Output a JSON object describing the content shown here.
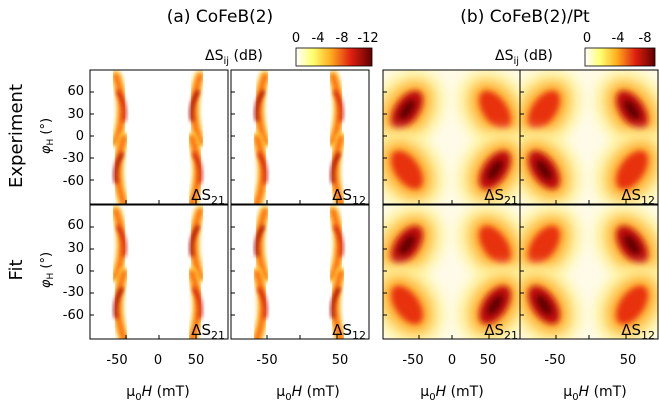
{
  "figure": {
    "panel_titles": [
      "(a) CoFeB(2)",
      "(b) CoFeB(2)/Pt"
    ],
    "row_labels": [
      "Experiment",
      "Fit"
    ],
    "ylabel": "φH (°)",
    "ylabel_main": "φ",
    "ylabel_sub": "H",
    "ylabel_unit": " (°)",
    "xlabel_prefix": "μ",
    "xlabel_sub": "0",
    "xlabel_var": "H",
    "xlabel_unit": " (mT)",
    "colorbar_label_main": "ΔS",
    "colorbar_label_sub": "ij",
    "colorbar_label_unit": " (dB)",
    "colorbar_a_ticks": [
      "0",
      "-4",
      "-8",
      "-12"
    ],
    "colorbar_b_ticks": [
      "0",
      "-4",
      "-8"
    ],
    "x_ticks": [
      "-50",
      "0",
      "50"
    ],
    "y_ticks": [
      "60",
      "30",
      "0",
      "-30",
      "-60"
    ],
    "panel_tags": [
      "ΔS21",
      "ΔS12",
      "ΔS21",
      "ΔS12"
    ],
    "tag_main": "ΔS",
    "tag_subs": [
      "21",
      "12",
      "21",
      "12"
    ]
  },
  "chart_data": [
    {
      "type": "heatmap",
      "title": "(a) CoFeB(2)",
      "rows": [
        "Experiment",
        "Fit"
      ],
      "columns": [
        "ΔS21",
        "ΔS12"
      ],
      "xlabel": "μ0H (mT)",
      "ylabel": "φH (°)",
      "xlim": [
        -90,
        90
      ],
      "ylim": [
        -90,
        90
      ],
      "colorbar": {
        "label": "ΔSij (dB)",
        "range": [
          0,
          -12
        ],
        "colormap": [
          "#ffffff",
          "#ffff60",
          "#ffa020",
          "#e02010",
          "#700000"
        ]
      },
      "features": "narrow crescent-shaped absorption arcs near ±50 mT, centered at φH ≈ ±45°"
    },
    {
      "type": "heatmap",
      "title": "(b) CoFeB(2)/Pt",
      "rows": [
        "Experiment",
        "Fit"
      ],
      "columns": [
        "ΔS21",
        "ΔS12"
      ],
      "xlabel": "μ0H (mT)",
      "ylabel": "φH (°)",
      "xlim": [
        -90,
        90
      ],
      "ylim": [
        -90,
        90
      ],
      "colorbar": {
        "label": "ΔSij (dB)",
        "range": [
          0,
          -8
        ],
        "colormap": [
          "#ffffff",
          "#ffff60",
          "#ffa020",
          "#e02010",
          "#700000"
        ]
      },
      "features": "broad lobes near ±55 mT at φH ≈ ±40°, intensity nonreciprocal between ΔS21 and ΔS12"
    }
  ]
}
